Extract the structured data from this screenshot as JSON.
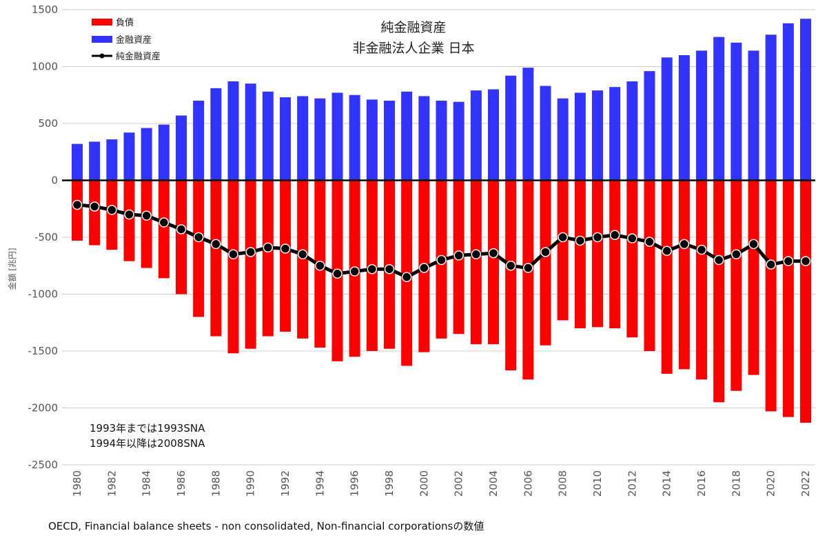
{
  "colors": {
    "liability": "#ff0000",
    "asset": "#3333ff",
    "net": "#000000",
    "grid": "#cccccc"
  },
  "chart_data": {
    "type": "bar",
    "title": [
      "純金融資産",
      "非金融法人企業 日本"
    ],
    "ylabel": "金額 [兆円]",
    "xlabel": "",
    "ylim": [
      -2500,
      1500
    ],
    "yticks": [
      1500,
      1000,
      500,
      0,
      -500,
      -1000,
      -1500,
      -2000,
      -2500
    ],
    "grid": true,
    "legend_position": "top-left",
    "x": [
      1980,
      1981,
      1982,
      1983,
      1984,
      1985,
      1986,
      1987,
      1988,
      1989,
      1990,
      1991,
      1992,
      1993,
      1994,
      1995,
      1996,
      1997,
      1998,
      1999,
      2000,
      2001,
      2002,
      2003,
      2004,
      2005,
      2006,
      2007,
      2008,
      2009,
      2010,
      2011,
      2012,
      2013,
      2014,
      2015,
      2016,
      2017,
      2018,
      2019,
      2020,
      2021,
      2022
    ],
    "xtick_labels": [
      "1980",
      "1982",
      "1984",
      "1986",
      "1988",
      "1990",
      "1992",
      "1994",
      "1996",
      "1998",
      "2000",
      "2002",
      "2004",
      "2006",
      "2008",
      "2010",
      "2012",
      "2014",
      "2016",
      "2018",
      "2020",
      "2022"
    ],
    "series": [
      {
        "name": "負債",
        "type": "bar",
        "values": [
          -530,
          -570,
          -610,
          -710,
          -770,
          -860,
          -1000,
          -1200,
          -1370,
          -1520,
          -1480,
          -1370,
          -1330,
          -1390,
          -1470,
          -1590,
          -1550,
          -1500,
          -1480,
          -1630,
          -1510,
          -1390,
          -1350,
          -1440,
          -1440,
          -1670,
          -1750,
          -1450,
          -1230,
          -1300,
          -1290,
          -1300,
          -1380,
          -1500,
          -1700,
          -1660,
          -1750,
          -1950,
          -1850,
          -1710,
          -2030,
          -2080,
          -2130
        ]
      },
      {
        "name": "金融資産",
        "type": "bar",
        "values": [
          320,
          340,
          360,
          420,
          460,
          490,
          570,
          700,
          810,
          870,
          850,
          780,
          730,
          740,
          720,
          770,
          750,
          710,
          700,
          780,
          740,
          700,
          690,
          790,
          800,
          920,
          990,
          830,
          720,
          770,
          790,
          820,
          870,
          960,
          1080,
          1100,
          1140,
          1260,
          1210,
          1140,
          1280,
          1380,
          1420
        ]
      },
      {
        "name": "純金融資産",
        "type": "line",
        "values": [
          -215,
          -230,
          -260,
          -300,
          -310,
          -370,
          -430,
          -500,
          -560,
          -650,
          -630,
          -590,
          -600,
          -650,
          -750,
          -820,
          -800,
          -780,
          -780,
          -850,
          -770,
          -700,
          -660,
          -650,
          -640,
          -750,
          -770,
          -630,
          -500,
          -530,
          -500,
          -480,
          -510,
          -540,
          -620,
          -560,
          -610,
          -700,
          -650,
          -560,
          -740,
          -710,
          -710
        ]
      }
    ],
    "annotations": [
      "1993年までは1993SNA",
      "1994年以降は2008SNA"
    ],
    "source": "OECD, Financial balance sheets - non consolidated, Non-financial corporationsの数値"
  }
}
